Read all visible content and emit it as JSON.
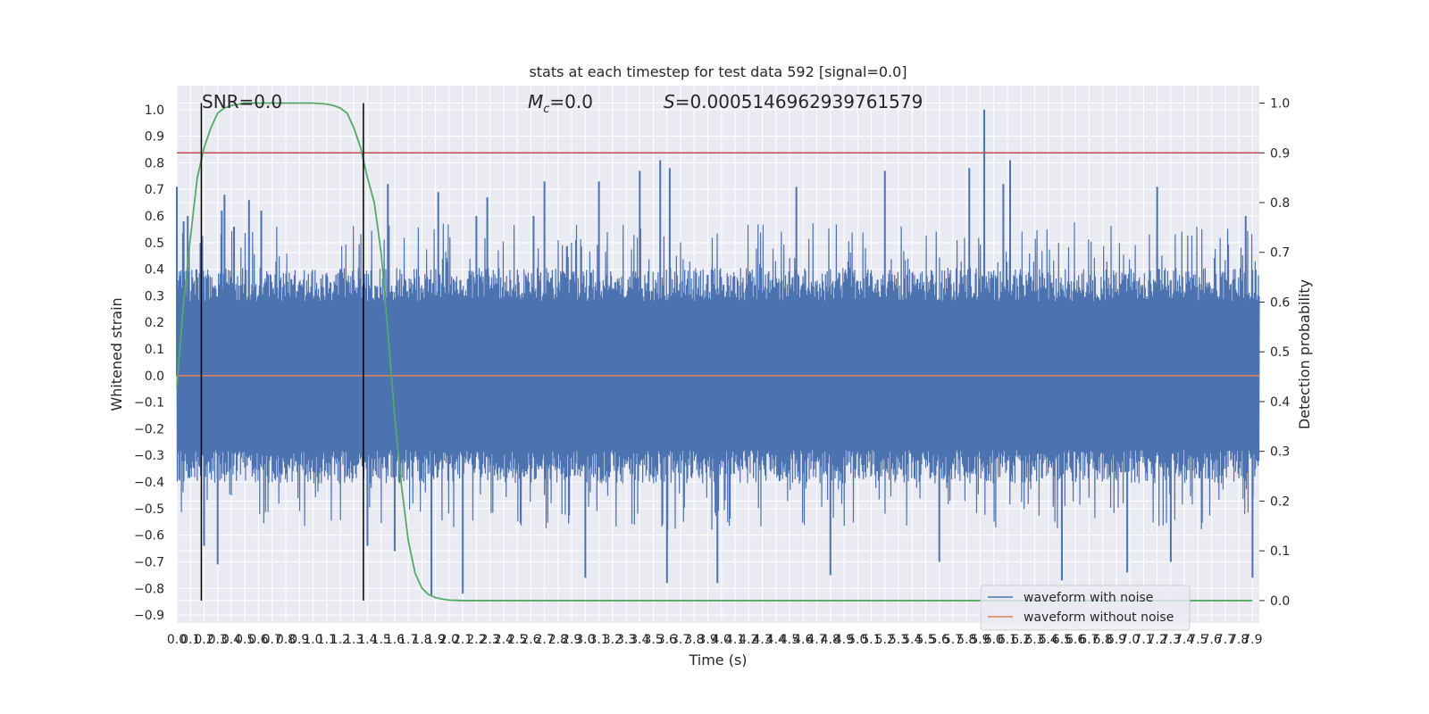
{
  "chart_data": {
    "type": "line",
    "title": "stats at each timestep for test data 592 [signal=0.0]",
    "xlabel": "Time (s)",
    "ylabel_left": "Whitened strain",
    "ylabel_right": "Detection probability",
    "xlim": [
      0.0,
      7.95
    ],
    "ylim_left": [
      -0.93,
      1.09
    ],
    "ylim_right": [
      -0.045,
      1.035
    ],
    "x_ticks": [
      "0.0",
      "0.1",
      "0.2",
      "0.3",
      "0.4",
      "0.5",
      "0.6",
      "0.7",
      "0.8",
      "0.9",
      "1.0",
      "1.1",
      "1.2",
      "1.3",
      "1.4",
      "1.5",
      "1.6",
      "1.7",
      "1.8",
      "1.9",
      "2.0",
      "2.1",
      "2.2",
      "2.3",
      "2.4",
      "2.5",
      "2.6",
      "2.7",
      "2.8",
      "2.9",
      "3.0",
      "3.1",
      "3.2",
      "3.3",
      "3.4",
      "3.5",
      "3.6",
      "3.7",
      "3.8",
      "3.9",
      "4.0",
      "4.1",
      "4.2",
      "4.3",
      "4.4",
      "4.5",
      "4.6",
      "4.7",
      "4.8",
      "4.9",
      "5.0",
      "5.1",
      "5.2",
      "5.3",
      "5.4",
      "5.5",
      "5.6",
      "5.7",
      "5.8",
      "5.9",
      "6.0",
      "6.1",
      "6.2",
      "6.3",
      "6.4",
      "6.5",
      "6.6",
      "6.7",
      "6.8",
      "6.9",
      "7.0",
      "7.1",
      "7.2",
      "7.3",
      "7.4",
      "7.5",
      "7.6",
      "7.7",
      "7.8",
      "7.9"
    ],
    "y_ticks_left": [
      "−0.9",
      "−0.8",
      "−0.7",
      "−0.6",
      "−0.5",
      "−0.4",
      "−0.3",
      "−0.2",
      "−0.1",
      "0.0",
      "0.1",
      "0.2",
      "0.3",
      "0.4",
      "0.5",
      "0.6",
      "0.7",
      "0.8",
      "0.9",
      "1.0"
    ],
    "y_ticks_right": [
      "0.0",
      "0.1",
      "0.2",
      "0.3",
      "0.4",
      "0.5",
      "0.6",
      "0.7",
      "0.8",
      "0.9",
      "1.0"
    ],
    "grid": true,
    "legend_position": "lower-right",
    "annotations": {
      "snr": "SNR=0.0",
      "mc_symbol": "M",
      "mc_subscript": "c",
      "mc_value": "=0.0",
      "s_symbol": "S",
      "s_value": "=0.0005146962939761579"
    },
    "series": [
      {
        "name": "waveform with noise",
        "color": "#4c72b0",
        "axis": "left",
        "description_values": "dense noise, amplitude roughly within ±0.3 with spikes",
        "spikes": [
          {
            "x": 0.0,
            "y": 0.71
          },
          {
            "x": 0.05,
            "y": 0.58
          },
          {
            "x": 0.08,
            "y": 0.6
          },
          {
            "x": 0.33,
            "y": 0.62
          },
          {
            "x": 0.35,
            "y": 0.68
          },
          {
            "x": 0.42,
            "y": 0.56
          },
          {
            "x": 0.53,
            "y": 0.66
          },
          {
            "x": 0.62,
            "y": 0.62
          },
          {
            "x": 1.55,
            "y": 0.72
          },
          {
            "x": 1.92,
            "y": 0.69
          },
          {
            "x": 2.2,
            "y": 0.6
          },
          {
            "x": 2.28,
            "y": 0.67
          },
          {
            "x": 2.62,
            "y": 0.6
          },
          {
            "x": 2.7,
            "y": 0.73
          },
          {
            "x": 3.1,
            "y": 0.73
          },
          {
            "x": 3.4,
            "y": 0.77
          },
          {
            "x": 3.55,
            "y": 0.81
          },
          {
            "x": 3.62,
            "y": 0.78
          },
          {
            "x": 4.55,
            "y": 0.71
          },
          {
            "x": 5.2,
            "y": 0.77
          },
          {
            "x": 5.82,
            "y": 0.78
          },
          {
            "x": 5.93,
            "y": 1.0
          },
          {
            "x": 6.12,
            "y": 0.81
          },
          {
            "x": 6.07,
            "y": 0.72
          },
          {
            "x": 7.2,
            "y": 0.71
          },
          {
            "x": 7.85,
            "y": 0.6
          },
          {
            "x": 0.3,
            "y": -0.71
          },
          {
            "x": 0.2,
            "y": -0.64
          },
          {
            "x": 1.6,
            "y": -0.66
          },
          {
            "x": 1.87,
            "y": -0.83
          },
          {
            "x": 2.1,
            "y": -0.82
          },
          {
            "x": 3.0,
            "y": -0.76
          },
          {
            "x": 3.6,
            "y": -0.78
          },
          {
            "x": 3.97,
            "y": -0.78
          },
          {
            "x": 4.8,
            "y": -0.75
          },
          {
            "x": 6.5,
            "y": -0.77
          },
          {
            "x": 6.98,
            "y": -0.74
          },
          {
            "x": 7.3,
            "y": -0.7
          },
          {
            "x": 7.9,
            "y": -0.76
          },
          {
            "x": 1.4,
            "y": -0.64
          },
          {
            "x": 5.6,
            "y": -0.7
          }
        ]
      },
      {
        "name": "waveform without noise",
        "color": "#dd8452",
        "axis": "left",
        "x": [
          0.0,
          7.95
        ],
        "y": [
          0.0,
          0.0
        ]
      },
      {
        "name": "",
        "color": "#55a868",
        "axis": "right",
        "x": [
          0.0,
          0.05,
          0.1,
          0.15,
          0.2,
          0.25,
          0.3,
          0.35,
          0.4,
          0.5,
          0.6,
          0.7,
          0.8,
          0.9,
          1.0,
          1.1,
          1.15,
          1.2,
          1.25,
          1.3,
          1.35,
          1.4,
          1.45,
          1.5,
          1.55,
          1.6,
          1.65,
          1.7,
          1.75,
          1.8,
          1.85,
          1.9,
          1.95,
          2.0,
          2.1,
          2.2,
          2.3,
          2.5,
          3.0,
          4.0,
          5.0,
          6.0,
          7.0,
          7.9
        ],
        "y": [
          0.43,
          0.6,
          0.73,
          0.85,
          0.91,
          0.95,
          0.98,
          0.99,
          0.995,
          1.0,
          1.0,
          1.0,
          1.0,
          1.0,
          1.0,
          0.998,
          0.995,
          0.99,
          0.98,
          0.95,
          0.91,
          0.85,
          0.8,
          0.7,
          0.54,
          0.37,
          0.23,
          0.12,
          0.055,
          0.025,
          0.012,
          0.006,
          0.003,
          0.001,
          0.0,
          0.0,
          0.0,
          0.0,
          0.0,
          0.0,
          0.0,
          0.0,
          0.0,
          0.0
        ]
      }
    ],
    "threshold_line": {
      "color": "#c44e52",
      "axis": "right",
      "y": 0.9
    },
    "vertical_lines": {
      "color": "#000000",
      "x": [
        0.18,
        1.37
      ]
    }
  }
}
